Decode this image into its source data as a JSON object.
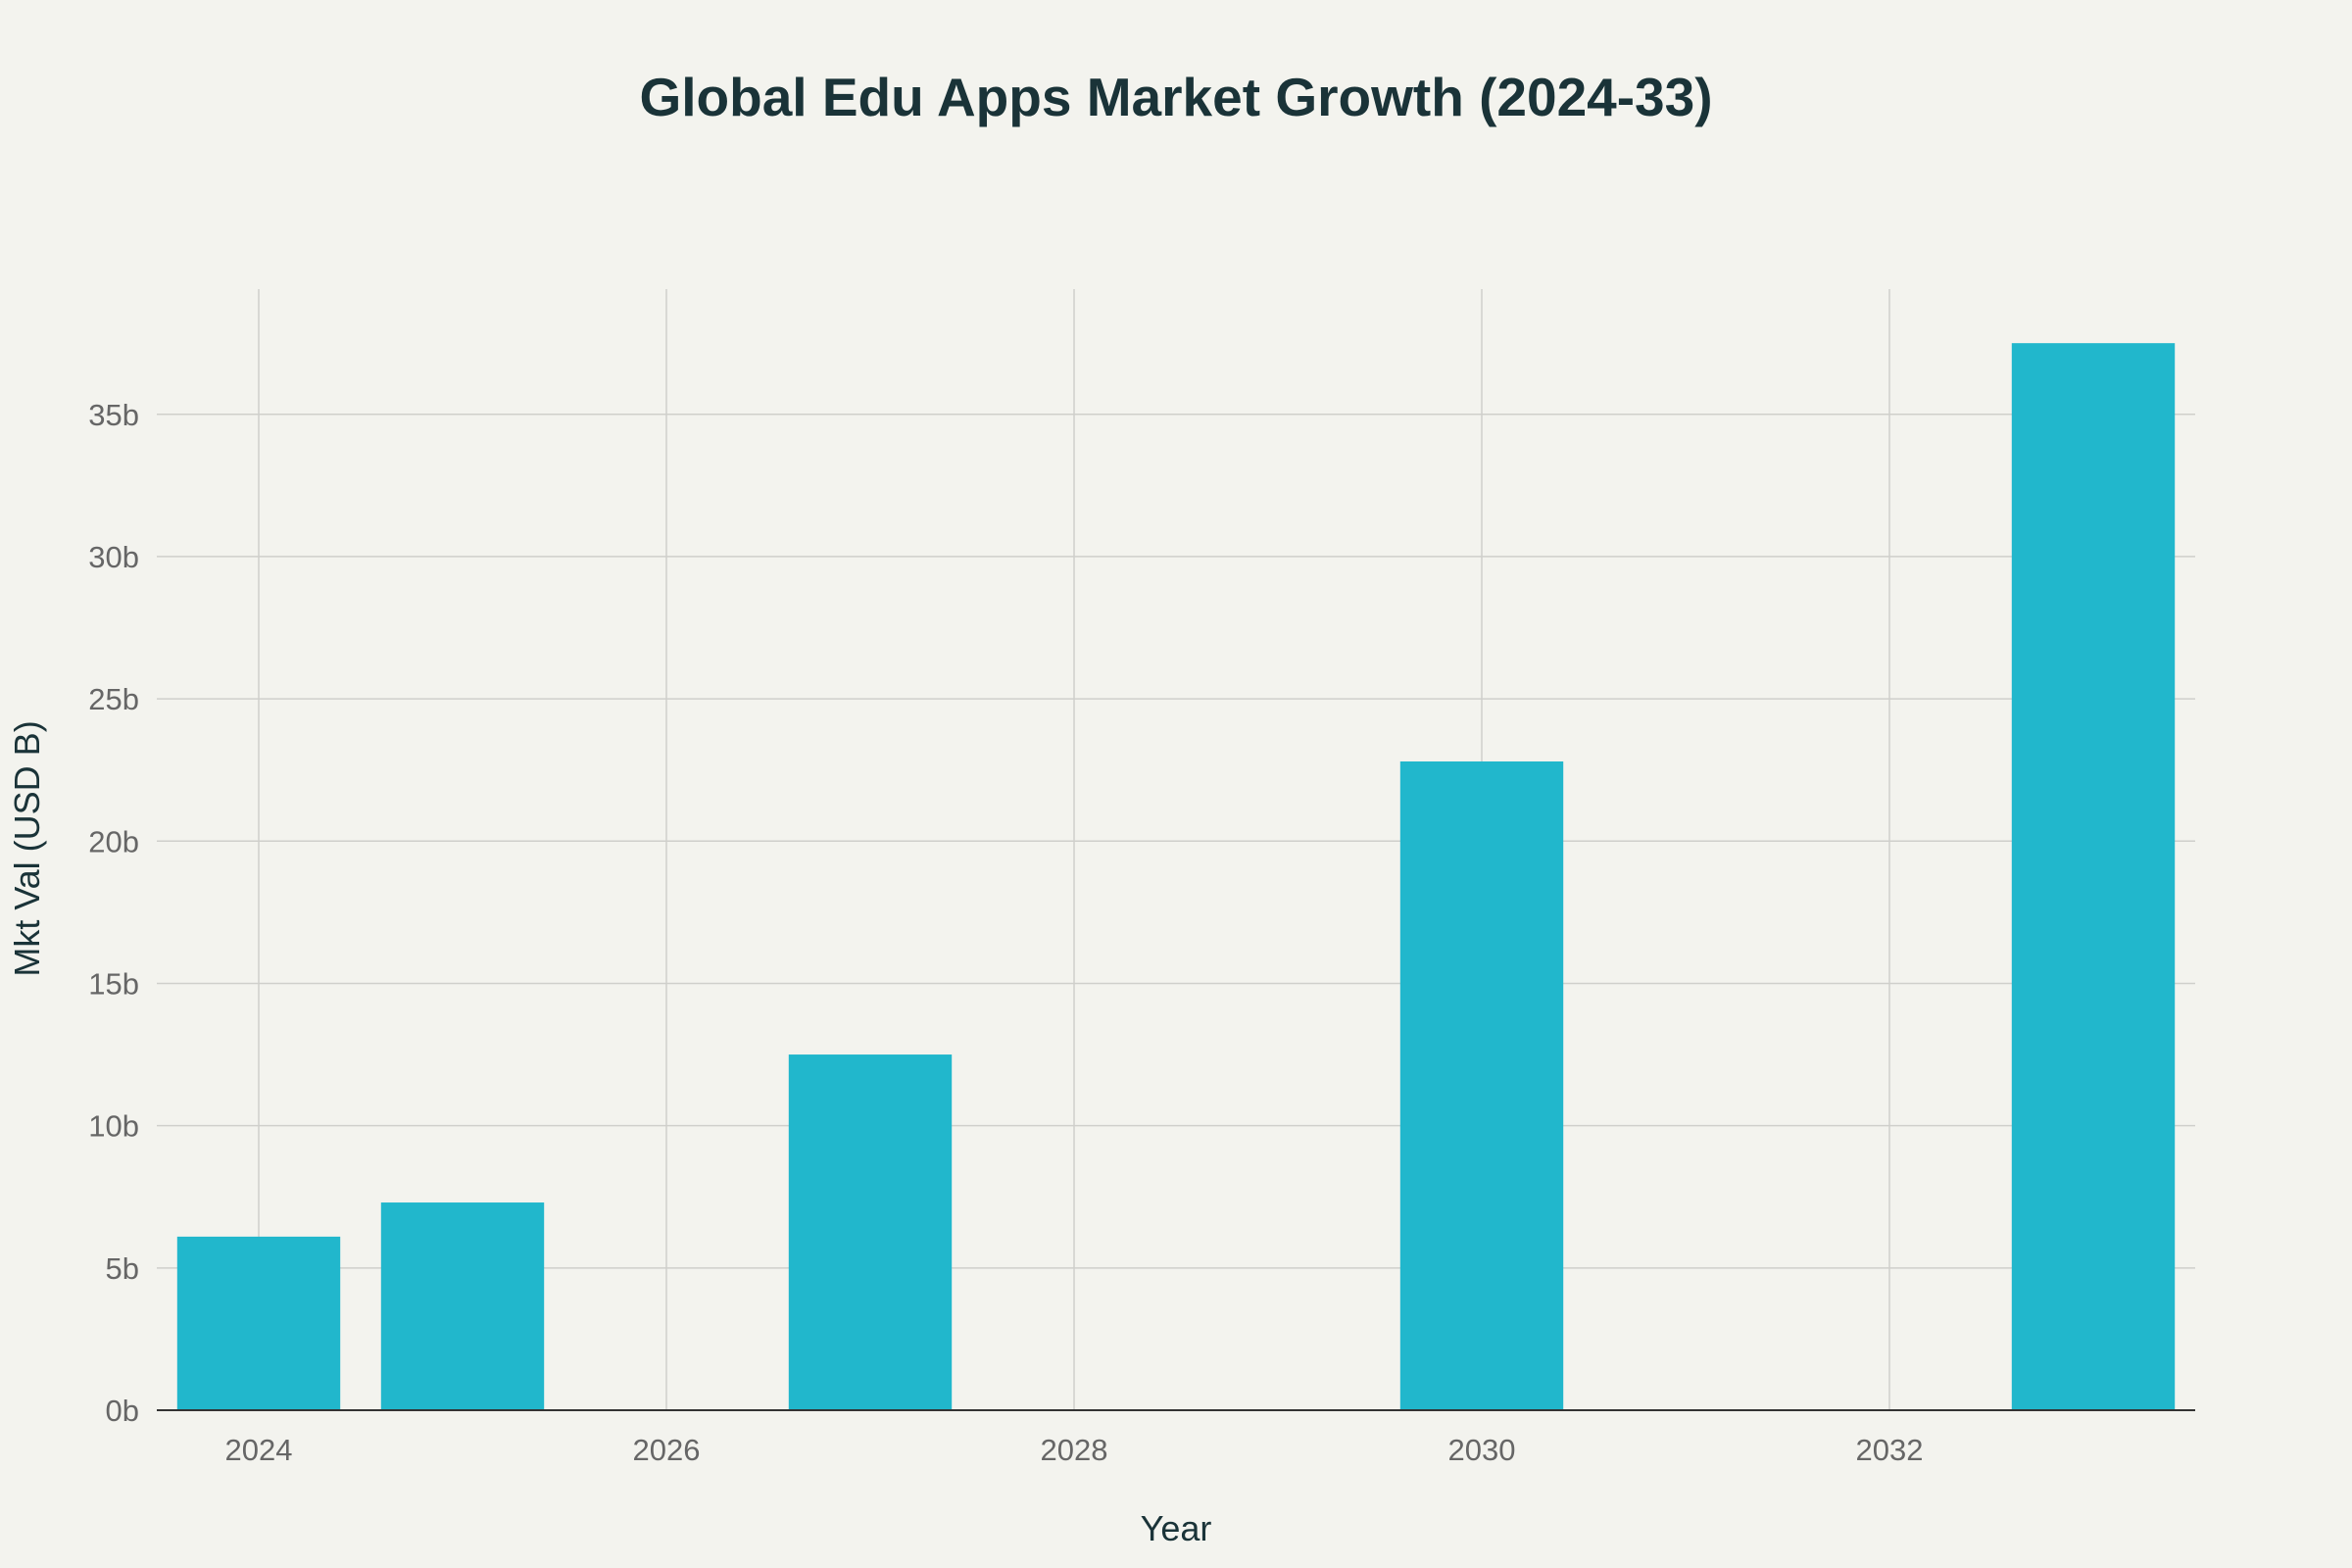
{
  "chart_data": {
    "type": "bar",
    "title": "Global Edu Apps Market Growth (2024-33)",
    "xlabel": "Year",
    "ylabel": "Mkt Val (USD B)",
    "x": [
      2024,
      2025,
      2027,
      2030,
      2033
    ],
    "values": [
      6.1,
      7.3,
      12.5,
      22.8,
      37.5
    ],
    "xlim": [
      2023.5,
      2033.5
    ],
    "ylim": [
      0,
      39.4
    ],
    "x_ticks": [
      2024,
      2026,
      2028,
      2030,
      2032
    ],
    "x_tick_labels": [
      "2024",
      "2026",
      "2028",
      "2030",
      "2032"
    ],
    "y_ticks": [
      0,
      5,
      10,
      15,
      20,
      25,
      30,
      35
    ],
    "y_tick_labels": [
      "0b",
      "5b",
      "10b",
      "15b",
      "20b",
      "25b",
      "30b",
      "35b"
    ],
    "bar_color": "#21b7cc",
    "grid": true,
    "legend": "none"
  }
}
